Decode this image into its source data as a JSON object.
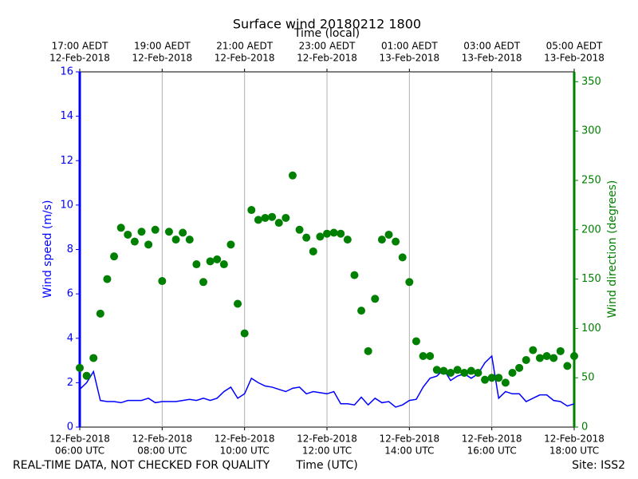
{
  "chart_data": {
    "type": "line",
    "title": "Surface wind 20180212 1800",
    "top_xlabel": "Time (local)",
    "xlabel": "Time (UTC)",
    "ylabel": "Wind speed (m/s)",
    "y2label": "Wind direction (degrees)",
    "note": "REAL-TIME DATA, NOT CHECKED FOR QUALITY",
    "site": "Site: ISS2",
    "grid": true,
    "xlim": [
      360,
      1080
    ],
    "xticks": [
      {
        "value": 360,
        "label": [
          "12-Feb-2018",
          "06:00 UTC"
        ]
      },
      {
        "value": 480,
        "label": [
          "12-Feb-2018",
          "08:00 UTC"
        ]
      },
      {
        "value": 600,
        "label": [
          "12-Feb-2018",
          "10:00 UTC"
        ]
      },
      {
        "value": 720,
        "label": [
          "12-Feb-2018",
          "12:00 UTC"
        ]
      },
      {
        "value": 840,
        "label": [
          "12-Feb-2018",
          "14:00 UTC"
        ]
      },
      {
        "value": 960,
        "label": [
          "12-Feb-2018",
          "16:00 UTC"
        ]
      },
      {
        "value": 1080,
        "label": [
          "12-Feb-2018",
          "18:00 UTC"
        ]
      }
    ],
    "top_xticks": [
      {
        "value": 360,
        "label": [
          "17:00 AEDT",
          "12-Feb-2018"
        ]
      },
      {
        "value": 480,
        "label": [
          "19:00 AEDT",
          "12-Feb-2018"
        ]
      },
      {
        "value": 600,
        "label": [
          "21:00 AEDT",
          "12-Feb-2018"
        ]
      },
      {
        "value": 720,
        "label": [
          "23:00 AEDT",
          "12-Feb-2018"
        ]
      },
      {
        "value": 840,
        "label": [
          "01:00 AEDT",
          "13-Feb-2018"
        ]
      },
      {
        "value": 960,
        "label": [
          "03:00 AEDT",
          "13-Feb-2018"
        ]
      },
      {
        "value": 1080,
        "label": [
          "05:00 AEDT",
          "13-Feb-2018"
        ]
      }
    ],
    "ylim": [
      0,
      16
    ],
    "yticks": [
      0,
      2,
      4,
      6,
      8,
      10,
      12,
      14,
      16
    ],
    "y2lim": [
      0,
      360
    ],
    "y2ticks": [
      0,
      50,
      100,
      150,
      200,
      250,
      300,
      350
    ],
    "x": [
      360,
      370,
      380,
      390,
      400,
      410,
      420,
      430,
      440,
      450,
      460,
      470,
      480,
      490,
      500,
      510,
      520,
      530,
      540,
      550,
      560,
      570,
      580,
      590,
      600,
      610,
      620,
      630,
      640,
      650,
      660,
      670,
      680,
      690,
      700,
      710,
      720,
      730,
      740,
      750,
      760,
      770,
      780,
      790,
      800,
      810,
      820,
      830,
      840,
      850,
      860,
      870,
      880,
      890,
      900,
      910,
      920,
      930,
      940,
      950,
      960,
      970,
      980,
      990,
      1000,
      1010,
      1020,
      1030,
      1040,
      1050,
      1060,
      1070,
      1080
    ],
    "series": [
      {
        "type": "line",
        "color": "#0000ff",
        "values": [
          1.7,
          2.0,
          2.5,
          1.2,
          1.15,
          1.15,
          1.1,
          1.2,
          1.2,
          1.2,
          1.3,
          1.1,
          1.15,
          1.15,
          1.15,
          1.2,
          1.25,
          1.2,
          1.3,
          1.2,
          1.3,
          1.6,
          1.8,
          1.3,
          1.5,
          2.2,
          2.0,
          1.85,
          1.8,
          1.7,
          1.6,
          1.75,
          1.8,
          1.5,
          1.6,
          1.55,
          1.5,
          1.6,
          1.05,
          1.05,
          1.0,
          1.35,
          1.0,
          1.3,
          1.1,
          1.15,
          0.9,
          1.0,
          1.2,
          1.25,
          1.8,
          2.2,
          2.3,
          2.6,
          2.1,
          2.3,
          2.4,
          2.2,
          2.4,
          2.9,
          3.2,
          1.3,
          1.6,
          1.5,
          1.5,
          1.15,
          1.3,
          1.45,
          1.45,
          1.2,
          1.15,
          0.95,
          1.05
        ]
      },
      {
        "type": "scatter",
        "axis": "y2",
        "color": "#008000",
        "values": [
          60,
          52,
          70,
          115,
          150,
          173,
          202,
          195,
          188,
          198,
          185,
          200,
          148,
          198,
          190,
          197,
          190,
          165,
          147,
          168,
          170,
          165,
          185,
          125,
          95,
          220,
          210,
          212,
          213,
          207,
          212,
          255,
          200,
          192,
          178,
          193,
          196,
          197,
          196,
          190,
          154,
          118,
          77,
          130,
          190,
          195,
          188,
          172,
          147,
          87,
          72,
          72,
          58,
          57,
          55,
          58,
          55,
          57,
          55,
          48,
          50,
          50,
          45,
          55,
          60,
          68,
          78,
          70,
          72,
          70,
          77,
          62,
          72
        ]
      }
    ]
  }
}
